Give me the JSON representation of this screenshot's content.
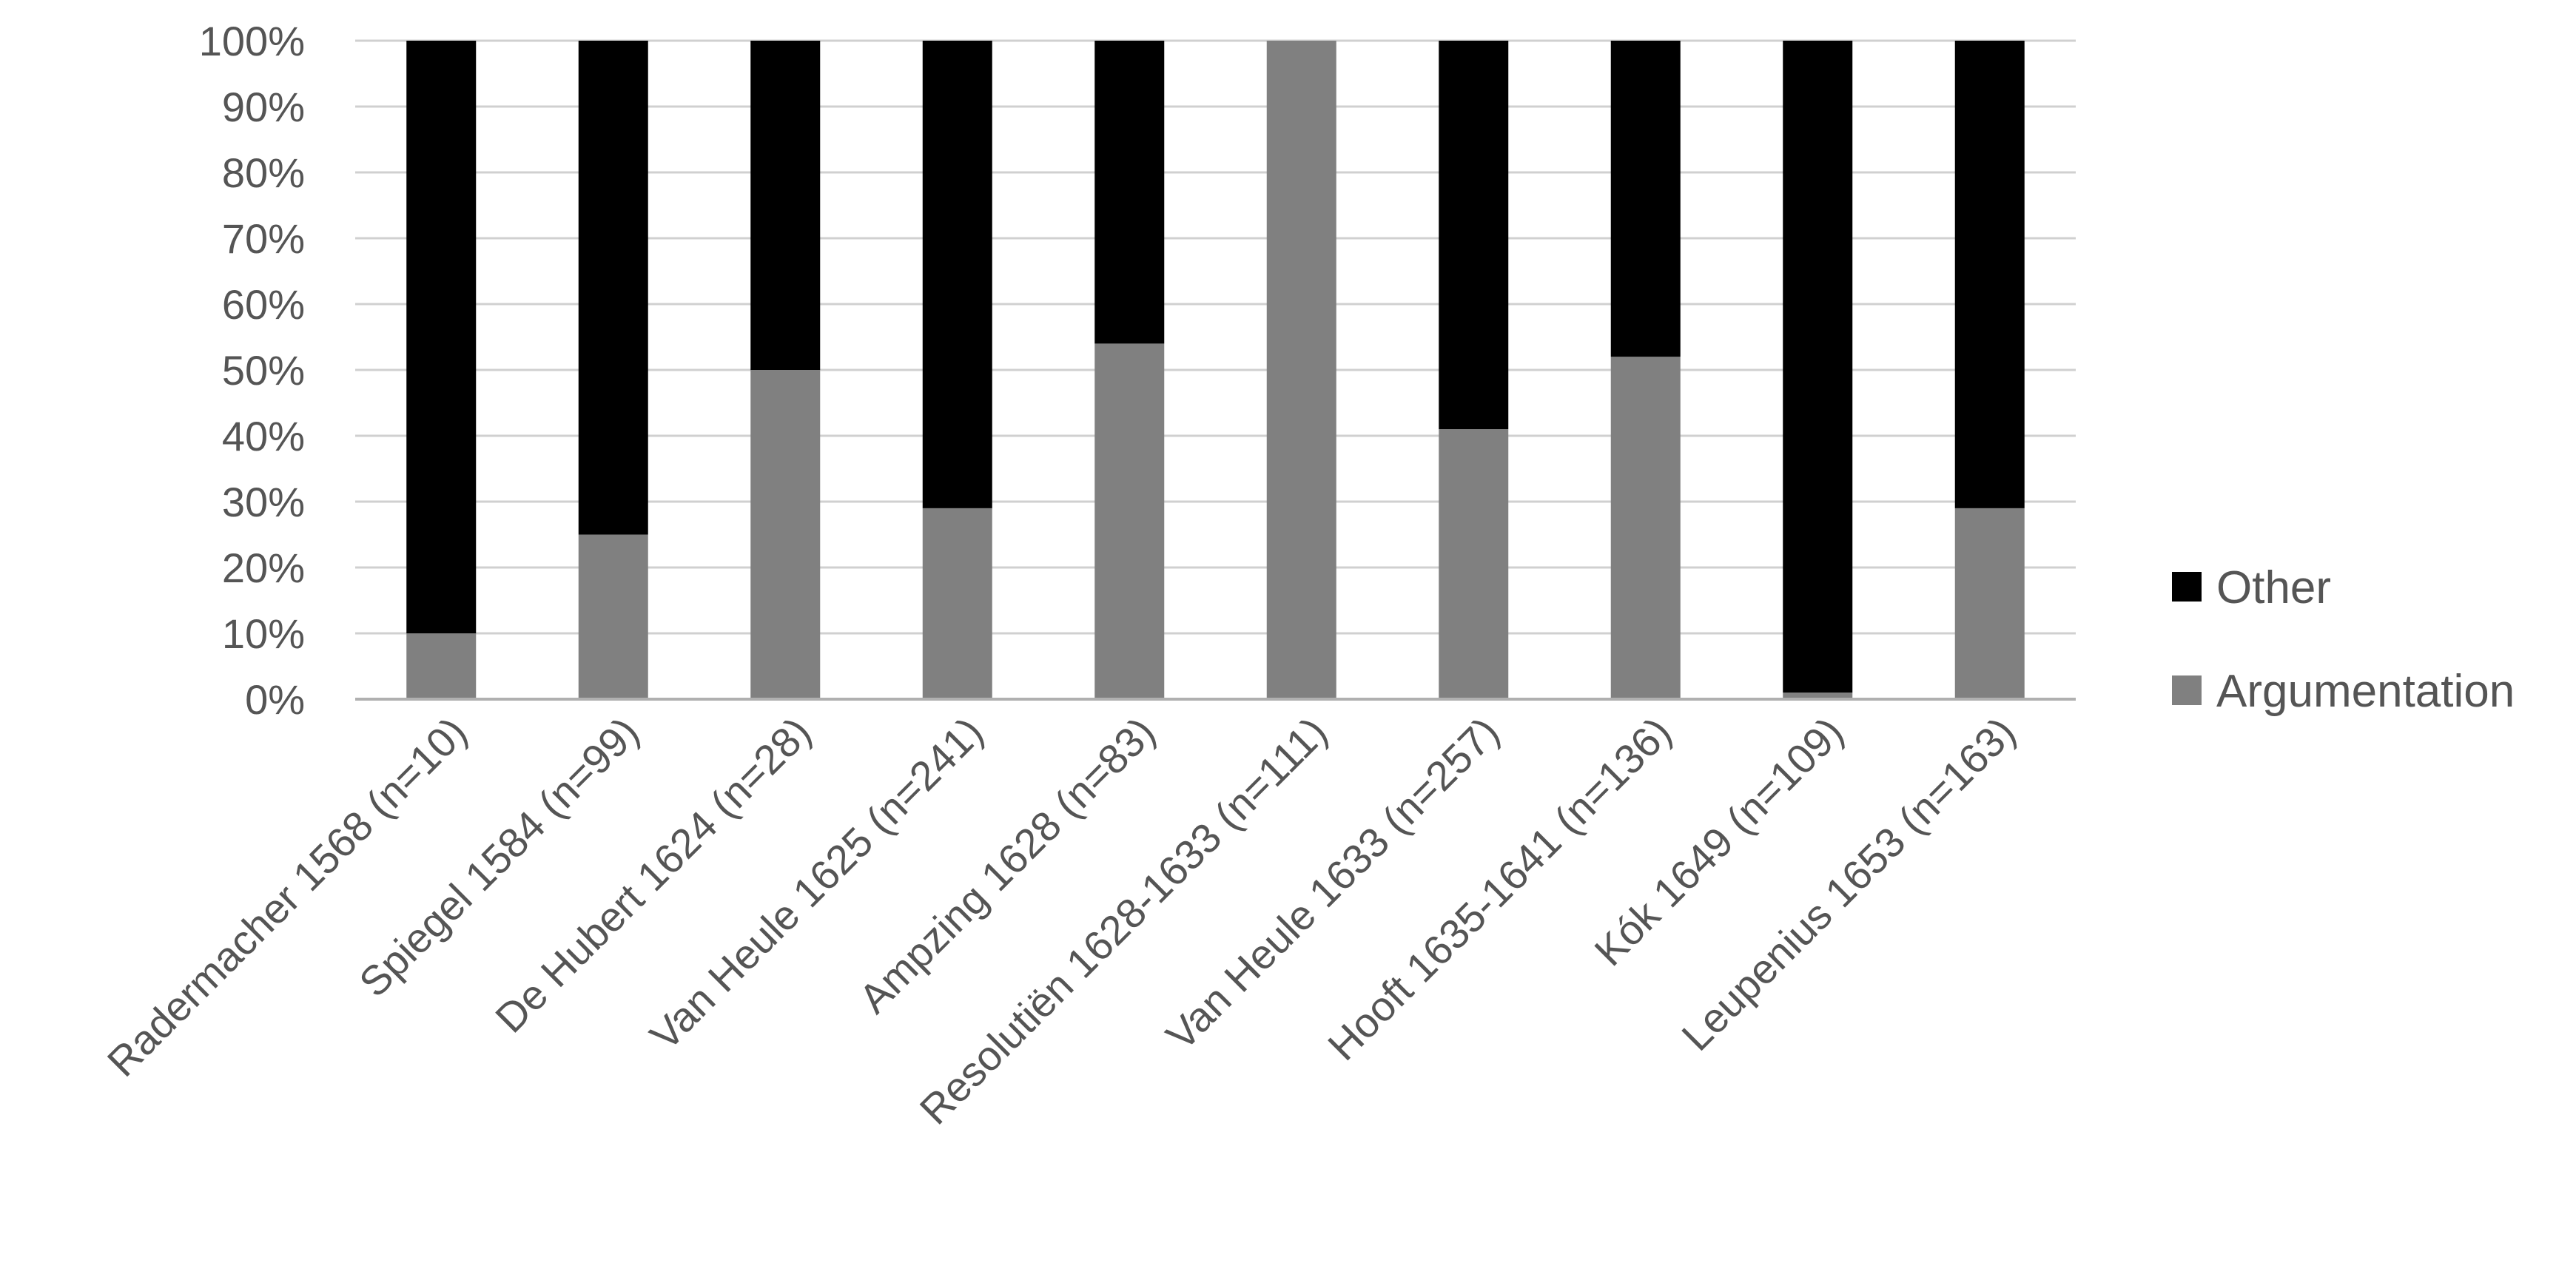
{
  "chart_data": {
    "type": "bar",
    "stacked": "percent",
    "title": "",
    "xlabel": "",
    "ylabel": "",
    "ylim": [
      0,
      100
    ],
    "yticks": [
      "0%",
      "10%",
      "20%",
      "30%",
      "40%",
      "50%",
      "60%",
      "70%",
      "80%",
      "90%",
      "100%"
    ],
    "grid": true,
    "legend_position": "right",
    "categories": [
      "Radermacher 1568 (n=10)",
      "Spiegel 1584 (n=99)",
      "De Hubert 1624 (n=28)",
      "Van Heule 1625 (n=241)",
      "Ampzing 1628 (n=83)",
      "Resolutiën 1628-1633 (n=111)",
      "Van Heule 1633 (n=257)",
      "Hooft 1635-1641 (n=136)",
      "Kók 1649 (n=109)",
      "Leupenius 1653 (n=163)"
    ],
    "series": [
      {
        "name": "Argumentation",
        "color": "#808080",
        "values": [
          10,
          25,
          50,
          29,
          54,
          100,
          41,
          52,
          1,
          29
        ]
      },
      {
        "name": "Other",
        "color": "#000000",
        "values": [
          90,
          75,
          50,
          71,
          46,
          0,
          59,
          48,
          99,
          71
        ]
      }
    ],
    "legend": [
      {
        "name": "Other",
        "color": "#000000"
      },
      {
        "name": "Argumentation",
        "color": "#808080"
      }
    ]
  }
}
